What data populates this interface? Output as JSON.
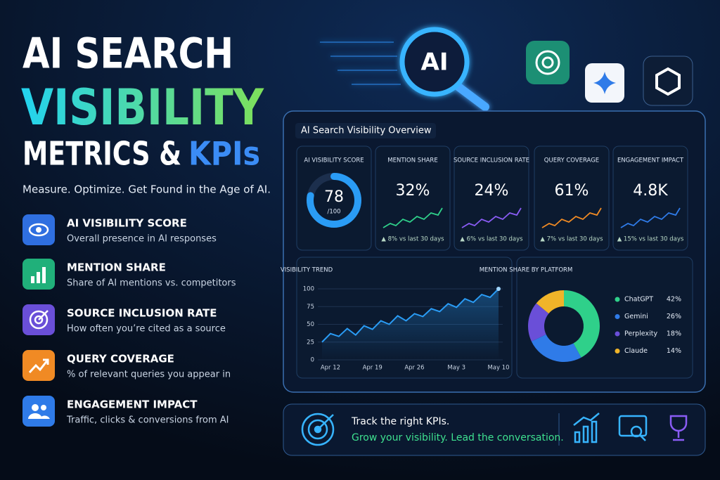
{
  "header": {
    "title_line1": "AI SEARCH",
    "title_line2": "VISIBILITY",
    "title_line3": "METRICS &",
    "title_highlight": "KPIs",
    "tagline": "Measure. Optimize. Get Found in the Age of AI.",
    "badge": "AI"
  },
  "features": [
    {
      "title": "AI VISIBILITY SCORE",
      "desc": "Overall presence in AI responses"
    },
    {
      "title": "MENTION SHARE",
      "desc": "Share of AI mentions vs. competitors"
    },
    {
      "title": "SOURCE INCLUSION RATE",
      "desc": "How often you’re cited as a source"
    },
    {
      "title": "QUERY COVERAGE",
      "desc": "% of relevant queries you appear in"
    },
    {
      "title": "ENGAGEMENT IMPACT",
      "desc": "Traffic, clicks & conversions from AI"
    }
  ],
  "dashboard": {
    "title": "AI Search Visibility Overview",
    "kpis": [
      {
        "label": "AI VISIBILITY SCORE",
        "score": 78,
        "max": {
          "value": 100,
          "label": "/100"
        }
      },
      {
        "label": "MENTION SHARE",
        "value": "32%",
        "change": "▲ 8% vs last 30 days"
      },
      {
        "label": "SOURCE INCLUSION RATE",
        "value": "24%",
        "change": "▲ 6% vs last 30 days"
      },
      {
        "label": "QUERY COVERAGE",
        "value": "61%",
        "change": "▲ 7% vs last 30 days"
      },
      {
        "label": "ENGAGEMENT IMPACT",
        "value": "4.8K",
        "change": "▲ 15% vs last 30 days"
      }
    ]
  },
  "chart_data": [
    {
      "type": "line",
      "title": "VISIBILITY TREND",
      "categories": [
        null,
        "Apr 12",
        null,
        null,
        null,
        null,
        "Apr 19",
        null,
        null,
        null,
        null,
        "Apr 26",
        null,
        null,
        null,
        null,
        "May 3",
        null,
        null,
        null,
        null,
        "May 10"
      ],
      "values": [
        25,
        37,
        33,
        44,
        35,
        48,
        43,
        55,
        50,
        62,
        55,
        65,
        61,
        72,
        68,
        79,
        74,
        86,
        81,
        92,
        88,
        100
      ],
      "color": "#2a9cf5",
      "ylim": [
        0,
        100
      ],
      "yticks": [
        0,
        25,
        50,
        75,
        100
      ],
      "grid": true
    },
    {
      "type": "pie",
      "title": "MENTION SHARE BY PLATFORM",
      "categories": [
        "ChatGPT",
        "Gemini",
        "Perplexity",
        "Claude"
      ],
      "values": [
        42,
        26,
        18,
        14
      ],
      "value_labels": [
        "42%",
        "26%",
        "18%",
        "14%"
      ],
      "colors": [
        "#2fd08a",
        "#2f7be8",
        "#6a4fd8",
        "#f0b429"
      ]
    }
  ],
  "footer": {
    "line1": "Track the right KPIs.",
    "line2": "Grow your visibility. Lead the conversation."
  }
}
